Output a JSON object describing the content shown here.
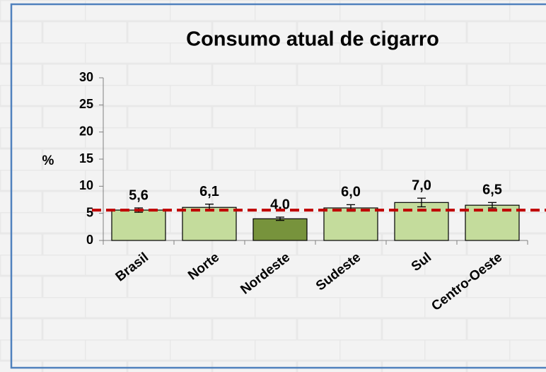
{
  "chart_data": {
    "type": "bar",
    "title": "Consumo atual de cigarro",
    "y_label": "%",
    "categories": [
      "Brasil",
      "Norte",
      "Nordeste",
      "Sudeste",
      "Sul",
      "Centro-Oeste"
    ],
    "values": [
      5.6,
      6.1,
      4.0,
      6.0,
      7.0,
      6.5
    ],
    "value_labels": [
      "5,6",
      "6,1",
      "4,0",
      "6,0",
      "7,0",
      "6,5"
    ],
    "errors": [
      0.4,
      0.6,
      0.3,
      0.6,
      0.8,
      0.5
    ],
    "colors": [
      "#c4dc9c",
      "#c4dc9c",
      "#77933c",
      "#c4dc9c",
      "#c4dc9c",
      "#c4dc9c"
    ],
    "reference_line": {
      "value": 5.6,
      "color": "#c00000"
    },
    "ylim": [
      0,
      30
    ],
    "yticks": [
      0,
      5,
      10,
      15,
      20,
      25,
      30
    ]
  }
}
